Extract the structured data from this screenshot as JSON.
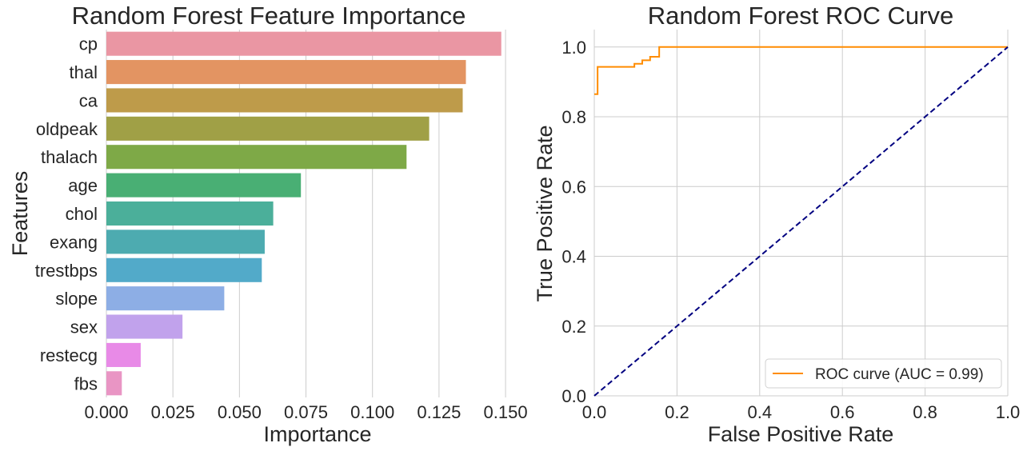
{
  "chart_data": [
    {
      "type": "bar",
      "orientation": "horizontal",
      "title": "Random Forest Feature Importance",
      "xlabel": "Importance",
      "ylabel": "Features",
      "xlim": [
        0,
        0.159
      ],
      "grid": "vertical",
      "xticks": [
        "0.000",
        "0.025",
        "0.050",
        "0.075",
        "0.100",
        "0.125",
        "0.150"
      ],
      "categories": [
        "cp",
        "thal",
        "ca",
        "oldpeak",
        "thalach",
        "age",
        "chol",
        "exang",
        "trestbps",
        "slope",
        "sex",
        "restecg",
        "fbs"
      ],
      "values": [
        0.1484,
        0.1351,
        0.1339,
        0.1213,
        0.1128,
        0.0731,
        0.0627,
        0.0595,
        0.0584,
        0.0443,
        0.0286,
        0.0129,
        0.0058
      ],
      "colors": [
        "#ea96a3",
        "#e39462",
        "#be9b4a",
        "#a0a046",
        "#7ea947",
        "#49af74",
        "#4baf9a",
        "#4dabb0",
        "#52aac9",
        "#8daee5",
        "#c1a2ec",
        "#e88ae7",
        "#e995c4"
      ]
    },
    {
      "type": "line",
      "title": "Random Forest ROC Curve",
      "xlabel": "False Positive Rate",
      "ylabel": "True Positive Rate",
      "xlim": [
        0,
        1
      ],
      "ylim": [
        0,
        1.05
      ],
      "grid": "both",
      "xticks": [
        "0.0",
        "0.2",
        "0.4",
        "0.6",
        "0.8",
        "1.0"
      ],
      "yticks": [
        "0.0",
        "0.2",
        "0.4",
        "0.6",
        "0.8",
        "1.0"
      ],
      "legend_position": "lower-right",
      "series": [
        {
          "name": "ROC curve (AUC = 0.99)",
          "color": "#ff8c00",
          "style": "solid",
          "x": [
            0,
            0.008,
            0.008,
            0.097,
            0.097,
            0.116,
            0.116,
            0.135,
            0.135,
            0.157,
            0.157,
            1.0
          ],
          "y": [
            0.865,
            0.865,
            0.943,
            0.943,
            0.952,
            0.952,
            0.962,
            0.962,
            0.972,
            0.972,
            1.0,
            1.0
          ]
        },
        {
          "color": "#000080",
          "style": "dashed",
          "x": [
            0,
            1
          ],
          "y": [
            0,
            1
          ]
        }
      ]
    }
  ]
}
